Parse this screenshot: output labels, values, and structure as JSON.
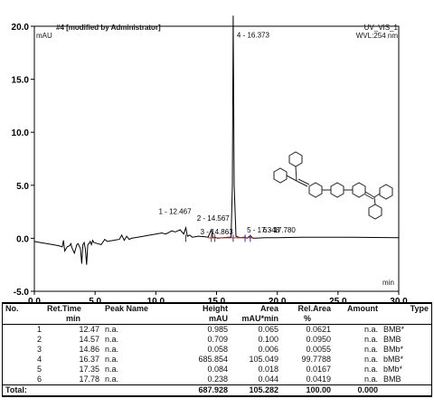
{
  "chart_data": {
    "type": "line",
    "title": "#4 [modified by Administrator]",
    "detector": "UV_VIS_1",
    "wavelength": "WVL:254 nm",
    "ylabel": "mAU",
    "xlabel": "min",
    "xlim": [
      0,
      30
    ],
    "ylim": [
      -5,
      20
    ],
    "x_ticks": [
      "0.0",
      "5.0",
      "10.0",
      "15.0",
      "20.0",
      "25.0",
      "30.0"
    ],
    "y_ticks": [
      "-5.0",
      "0.0",
      "5.0",
      "10.0",
      "15.0",
      "20.0"
    ],
    "series": [
      {
        "x": [
          0.0,
          0.5,
          1.0,
          1.5,
          2.0,
          2.3,
          2.4,
          2.5,
          2.7,
          2.9,
          3.0,
          3.1,
          3.3,
          3.5,
          3.6,
          3.8,
          3.9,
          4.0,
          4.1,
          4.2,
          4.3,
          4.4,
          4.5,
          4.6,
          4.7,
          4.8,
          4.9,
          5.2,
          5.5,
          5.8,
          6.0,
          6.5,
          7.0,
          7.2,
          7.4,
          7.6,
          7.8,
          8.0,
          8.5,
          9.0,
          9.5,
          10.0,
          10.5,
          10.8,
          11.0,
          11.3,
          11.6,
          12.0,
          12.3,
          12.47,
          12.6,
          12.8,
          13.0,
          13.5,
          14.0,
          14.3,
          14.57,
          14.7,
          14.86,
          15.1,
          15.5,
          16.0,
          16.2,
          16.3,
          16.37,
          16.45,
          16.6,
          16.8,
          17.0,
          17.35,
          17.5,
          17.78,
          18.0,
          19.0,
          20.0,
          22.0,
          24.0,
          26.0,
          28.0,
          30.0
        ],
        "y": [
          -0.3,
          -0.4,
          -0.5,
          -0.6,
          -0.7,
          -0.8,
          -0.2,
          -1.2,
          -0.8,
          -0.7,
          -0.5,
          -0.9,
          -1.4,
          -0.6,
          -0.5,
          -1.0,
          -2.4,
          -0.6,
          -0.4,
          -1.0,
          -2.5,
          -0.6,
          -0.5,
          -0.3,
          -0.6,
          -0.2,
          -0.4,
          -0.5,
          -0.6,
          -0.1,
          -0.3,
          -0.2,
          -0.1,
          0.3,
          -0.2,
          0.2,
          -0.1,
          0.0,
          0.1,
          0.2,
          0.3,
          0.4,
          0.5,
          0.4,
          0.5,
          0.7,
          0.6,
          0.8,
          0.4,
          1.0,
          0.2,
          0.3,
          0.1,
          0.2,
          0.15,
          0.1,
          0.8,
          0.05,
          0.1,
          0.0,
          0.05,
          0.1,
          0.1,
          5.0,
          21.0,
          5.0,
          0.2,
          0.1,
          0.05,
          0.12,
          0.0,
          0.25,
          0.0,
          0.05,
          0.05,
          0.1,
          0.1,
          0.1,
          0.08,
          0.05
        ]
      }
    ],
    "peak_labels": [
      {
        "text": "1 - 12.467",
        "rt": 12.47,
        "y": 1.1
      },
      {
        "text": "2 - 14.567",
        "rt": 14.57,
        "y": 0.8
      },
      {
        "text": "3 - 14.863",
        "rt": 14.86,
        "y": 0.2
      },
      {
        "text": "5 - 17.348",
        "rt": 17.35,
        "y": 0.2
      },
      {
        "text": "6 - 17.780",
        "rt": 17.78,
        "y": 0.2
      },
      {
        "text": "4 - 16.373",
        "rt": 16.37,
        "y": 21.0
      }
    ]
  },
  "table": {
    "headers1": [
      "No.",
      "Ret.Time",
      "Peak Name",
      "Height",
      "Area",
      "Rel.Area",
      "Amount",
      "Type"
    ],
    "headers2": [
      "",
      "min",
      "",
      "mAU",
      "mAU*min",
      "%",
      "",
      ""
    ],
    "rows": [
      [
        "1",
        "12.47",
        "n.a.",
        "0.985",
        "0.065",
        "0.0621",
        "n.a.",
        "BMB*"
      ],
      [
        "2",
        "14.57",
        "n.a.",
        "0.709",
        "0.100",
        "0.0950",
        "n.a.",
        "BMB"
      ],
      [
        "3",
        "14.86",
        "n.a.",
        "0.058",
        "0.006",
        "0.0055",
        "n.a.",
        "BMb*"
      ],
      [
        "4",
        "16.37",
        "n.a.",
        "685.854",
        "105.049",
        "99.7788",
        "n.a.",
        "bMB*"
      ],
      [
        "5",
        "17.35",
        "n.a.",
        "0.084",
        "0.018",
        "0.0167",
        "n.a.",
        "bMb*"
      ],
      [
        "6",
        "17.78",
        "n.a.",
        "0.238",
        "0.044",
        "0.0419",
        "n.a.",
        "BMB"
      ]
    ],
    "total": [
      "Total:",
      "",
      "",
      "687.928",
      "105.282",
      "100.00",
      "0.000",
      ""
    ]
  }
}
